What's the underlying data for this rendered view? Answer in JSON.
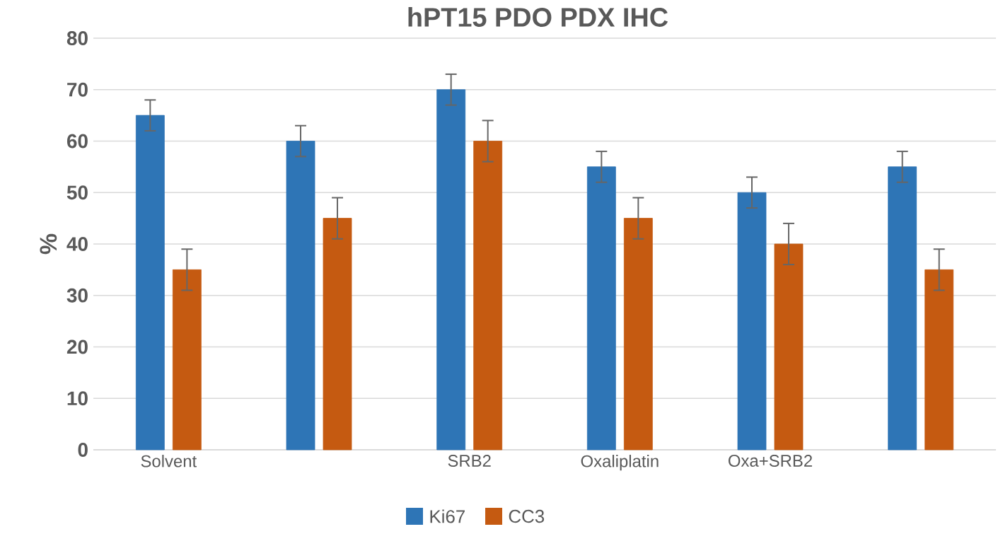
{
  "chart_data": {
    "type": "bar",
    "title": "hPT15 PDO PDX IHC",
    "ylabel": "%",
    "categories": [
      "Solvent",
      null,
      "SRB2",
      "Oxaliplatin",
      "Oxa+SRB2",
      null
    ],
    "series": [
      {
        "name": "Ki67",
        "color": "#2e75b6",
        "values": [
          65,
          60,
          70,
          55,
          50,
          55
        ],
        "errors": [
          3,
          3,
          3,
          3,
          3,
          3
        ]
      },
      {
        "name": "CC3",
        "color": "#c55a11",
        "values": [
          35,
          45,
          60,
          45,
          40,
          35
        ],
        "errors": [
          4,
          4,
          4,
          4,
          4,
          4
        ]
      }
    ],
    "ylim": [
      0,
      80
    ],
    "yticks": [
      0,
      10,
      20,
      30,
      40,
      50,
      60,
      70,
      80
    ],
    "grid": "y",
    "legend": "bottom"
  }
}
